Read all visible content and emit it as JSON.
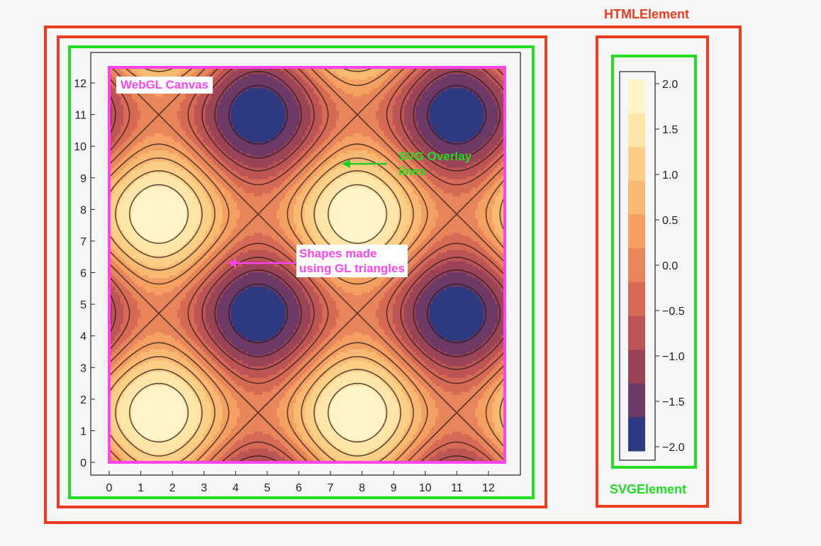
{
  "outer_label": "HTMLElement",
  "svg_label": "SVGElement",
  "canvas_label": "WebGL Canvas",
  "overlay_label_line1": "SVG Overlay",
  "overlay_label_line2": "lines",
  "shapes_label_line1": "Shapes made",
  "shapes_label_line2": "using GL triangles",
  "colors": {
    "html_box": "#ee3a1e",
    "svg_box": "#22dd22",
    "canvas_box": "#ff44ee",
    "background": "#f5f6f8"
  },
  "chart_data": {
    "type": "heatmap",
    "function": "sin(x) + sin(y) contour",
    "xlim": [
      0,
      12.566
    ],
    "ylim": [
      0,
      12.566
    ],
    "x_ticks": [
      "0",
      "1",
      "2",
      "3",
      "4",
      "5",
      "6",
      "7",
      "8",
      "9",
      "10",
      "11",
      "12"
    ],
    "y_ticks": [
      "0",
      "1",
      "2",
      "3",
      "4",
      "5",
      "6",
      "7",
      "8",
      "9",
      "10",
      "11",
      "12"
    ],
    "levels": [
      -2.0,
      -1.75,
      -1.5,
      -1.25,
      -1.0,
      -0.75,
      -0.5,
      -0.25,
      0.0,
      0.25,
      0.5,
      0.75,
      1.0,
      1.25,
      1.5,
      1.75,
      2.0
    ],
    "colorbar": {
      "ticks": [
        2.0,
        1.5,
        1.0,
        0.5,
        0.0,
        -0.5,
        -1.0,
        -1.5,
        -2.0
      ],
      "tick_labels": [
        "2.0",
        "1.5",
        "1.0",
        "0.5",
        "0.0",
        "−0.5",
        "−1.0",
        "−1.5",
        "−2.0"
      ],
      "colors": [
        "#fff5c8",
        "#fde6a8",
        "#fbd086",
        "#f8b970",
        "#f3a060",
        "#e8855a",
        "#d66a54",
        "#bc5553",
        "#9a4457",
        "#6d3a65",
        "#2e3a7f"
      ]
    }
  }
}
